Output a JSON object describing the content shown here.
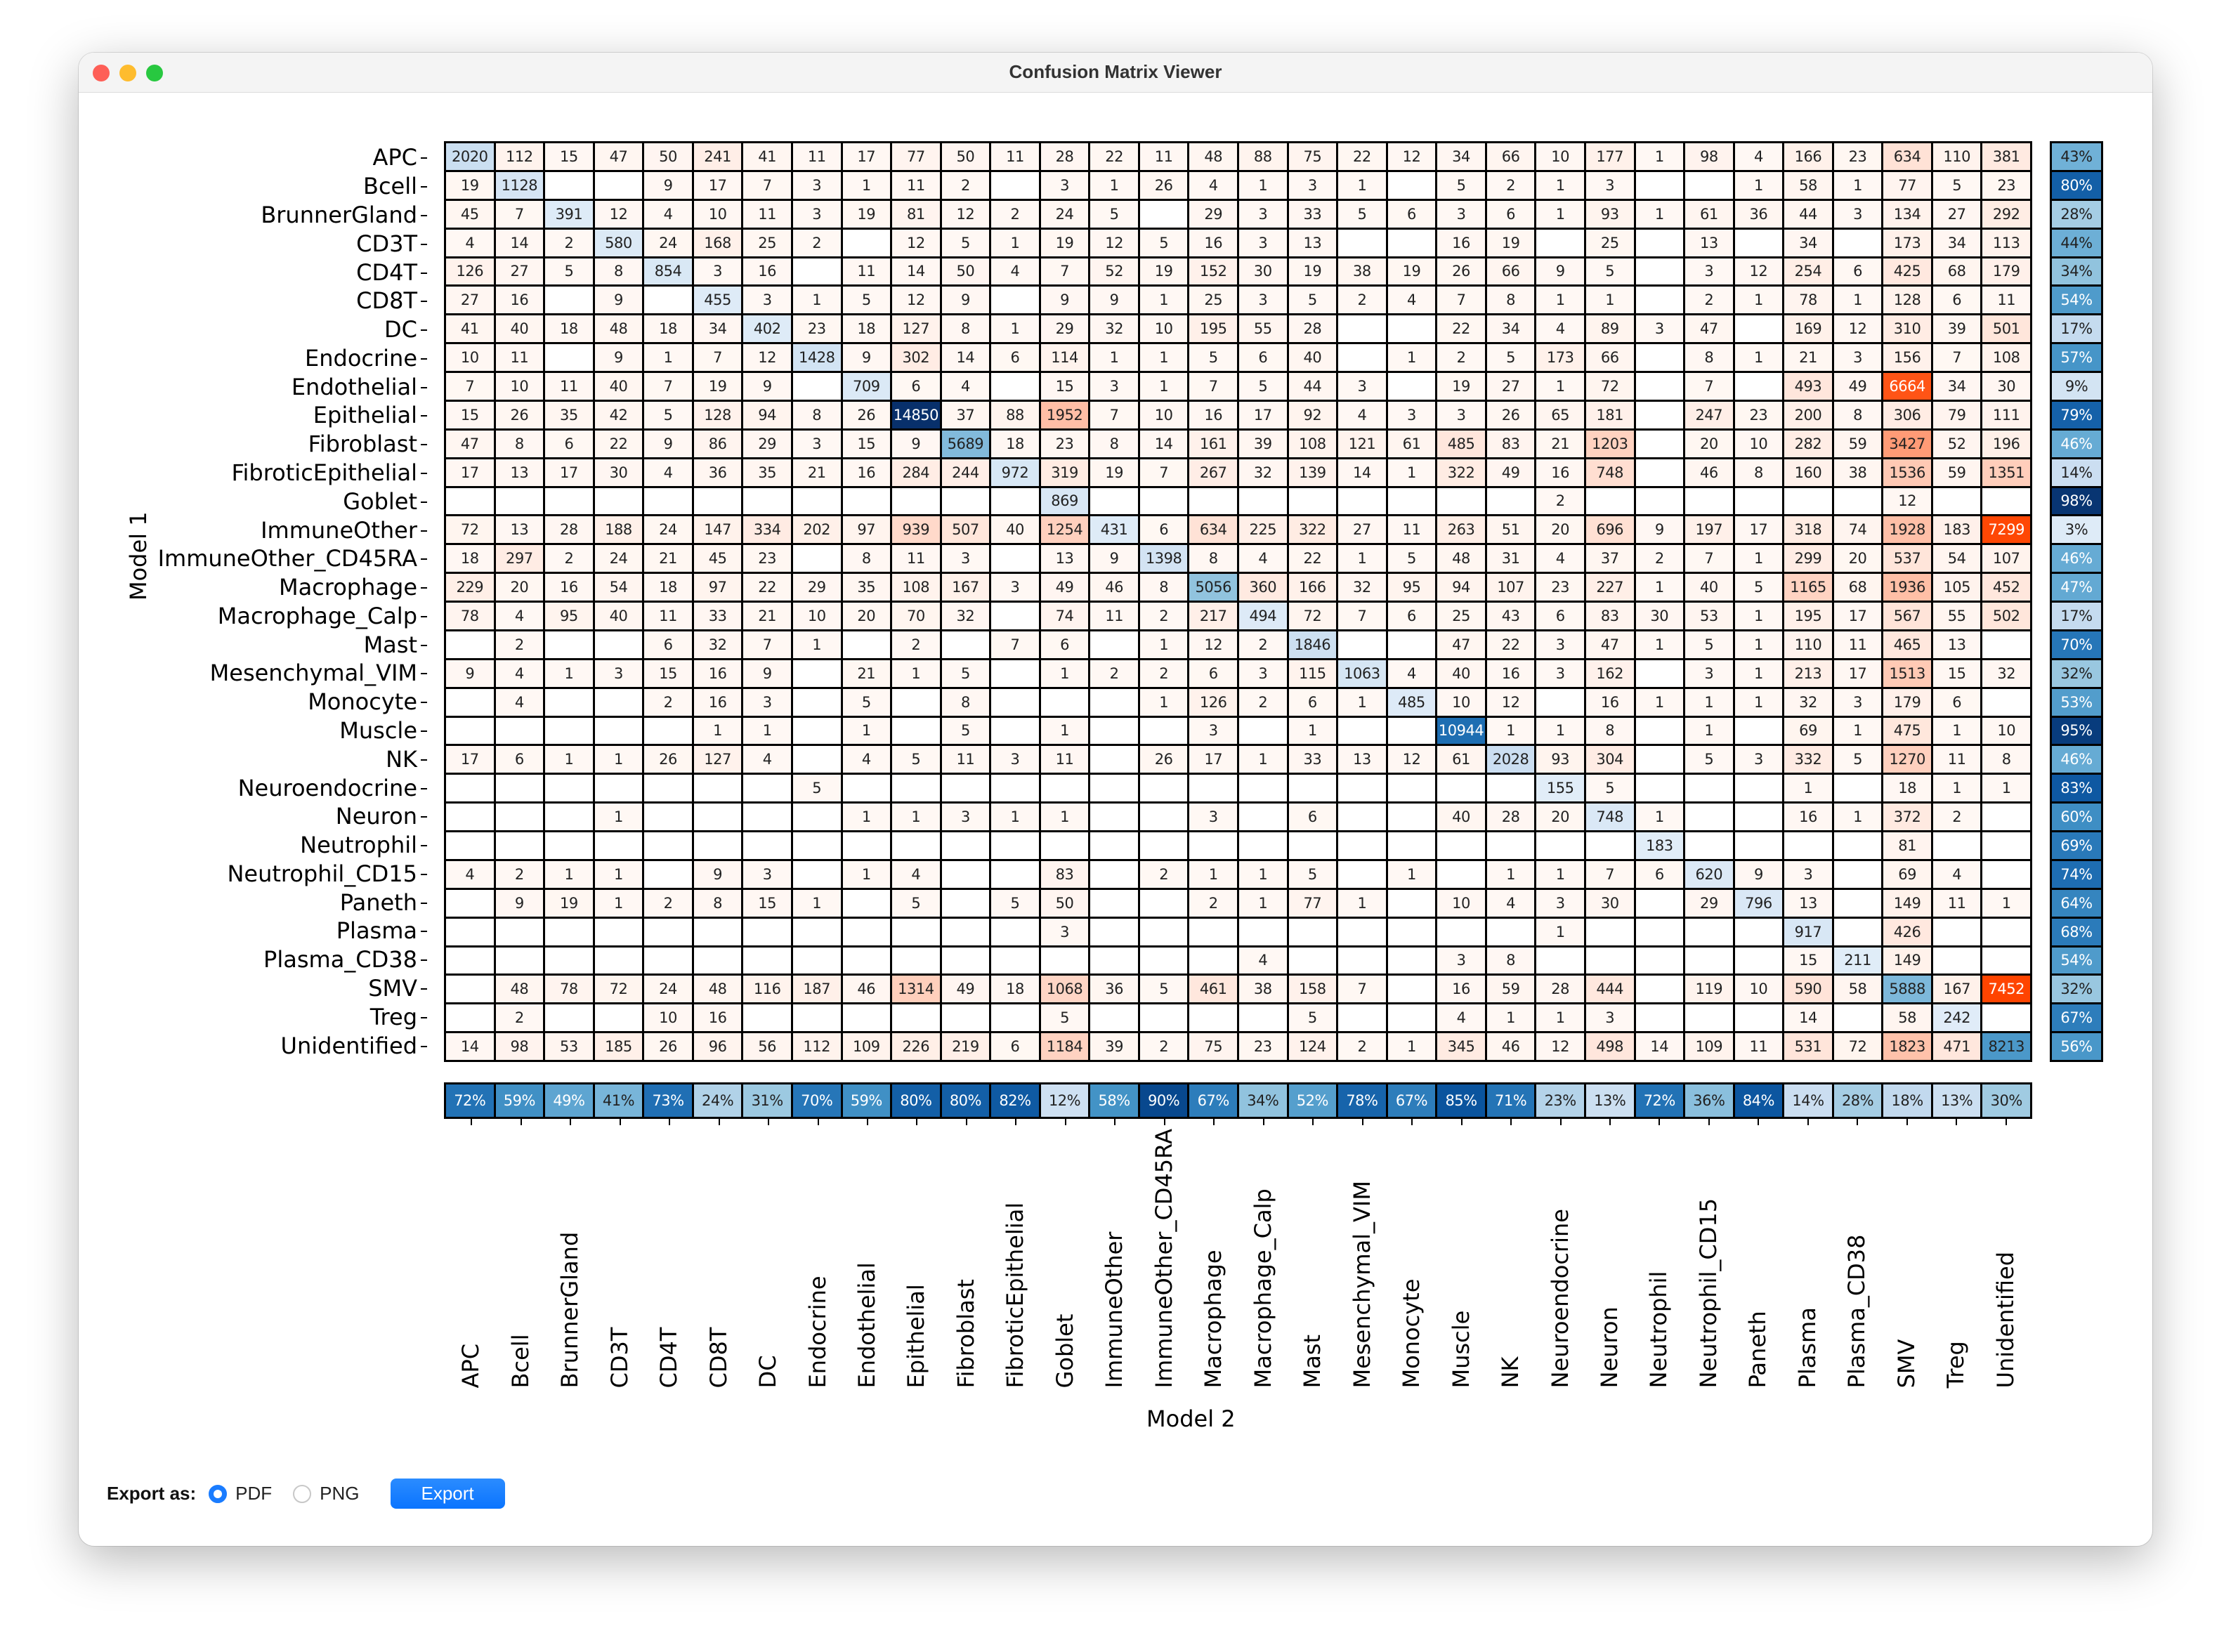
{
  "window": {
    "title": "Confusion Matrix Viewer"
  },
  "colors": {
    "close": "#fe5f57",
    "minimize": "#febc2e",
    "zoom": "#28c840",
    "accent": "#0a74ff",
    "diag_max": "#08306b",
    "offdiag_max": "#ff4400"
  },
  "axes": {
    "x_label": "Model 2",
    "y_label": "Model 1"
  },
  "labels": [
    "APC",
    "Bcell",
    "BrunnerGland",
    "CD3T",
    "CD4T",
    "CD8T",
    "DC",
    "Endocrine",
    "Endothelial",
    "Epithelial",
    "Fibroblast",
    "FibroticEpithelial",
    "Goblet",
    "ImmuneOther",
    "ImmuneOther_CD45RA",
    "Macrophage",
    "Macrophage_Calp",
    "Mast",
    "Mesenchymal_VIM",
    "Monocyte",
    "Muscle",
    "NK",
    "Neuroendocrine",
    "Neuron",
    "Neutrophil",
    "Neutrophil_CD15",
    "Paneth",
    "Plasma",
    "Plasma_CD38",
    "SMV",
    "Treg",
    "Unidentified"
  ],
  "matrix": [
    [
      2020,
      112,
      15,
      47,
      50,
      241,
      41,
      11,
      17,
      77,
      50,
      11,
      28,
      22,
      11,
      48,
      88,
      75,
      22,
      12,
      34,
      66,
      10,
      177,
      1,
      98,
      4,
      166,
      23,
      634,
      110,
      381
    ],
    [
      19,
      1128,
      null,
      null,
      9,
      17,
      7,
      3,
      1,
      11,
      2,
      null,
      3,
      1,
      26,
      4,
      1,
      3,
      1,
      null,
      5,
      2,
      1,
      3,
      null,
      null,
      1,
      58,
      1,
      77,
      5,
      23
    ],
    [
      45,
      7,
      391,
      12,
      4,
      10,
      11,
      3,
      19,
      81,
      12,
      2,
      24,
      5,
      null,
      29,
      3,
      33,
      5,
      6,
      3,
      6,
      1,
      93,
      1,
      61,
      36,
      44,
      3,
      134,
      27,
      292
    ],
    [
      4,
      14,
      2,
      580,
      24,
      168,
      25,
      2,
      null,
      12,
      5,
      1,
      19,
      12,
      5,
      16,
      3,
      13,
      null,
      null,
      16,
      19,
      null,
      25,
      null,
      13,
      null,
      34,
      null,
      173,
      34,
      113
    ],
    [
      126,
      27,
      5,
      8,
      854,
      3,
      16,
      null,
      11,
      14,
      50,
      4,
      7,
      52,
      19,
      152,
      30,
      19,
      38,
      19,
      26,
      66,
      9,
      5,
      null,
      3,
      12,
      254,
      6,
      425,
      68,
      179
    ],
    [
      27,
      16,
      null,
      9,
      null,
      455,
      3,
      1,
      5,
      12,
      9,
      null,
      9,
      9,
      1,
      25,
      3,
      5,
      2,
      4,
      7,
      8,
      1,
      1,
      null,
      2,
      1,
      78,
      1,
      128,
      6,
      11
    ],
    [
      41,
      40,
      18,
      48,
      18,
      34,
      402,
      23,
      18,
      127,
      8,
      1,
      29,
      32,
      10,
      195,
      55,
      28,
      null,
      null,
      22,
      34,
      4,
      89,
      3,
      47,
      null,
      169,
      12,
      310,
      39,
      501
    ],
    [
      10,
      11,
      null,
      9,
      1,
      7,
      12,
      1428,
      9,
      302,
      14,
      6,
      114,
      1,
      1,
      5,
      6,
      40,
      null,
      1,
      2,
      5,
      173,
      66,
      null,
      8,
      1,
      21,
      3,
      156,
      7,
      108
    ],
    [
      7,
      10,
      11,
      40,
      7,
      19,
      9,
      null,
      709,
      6,
      4,
      null,
      15,
      3,
      1,
      7,
      5,
      44,
      3,
      null,
      19,
      27,
      1,
      72,
      null,
      7,
      null,
      493,
      49,
      6664,
      34,
      30
    ],
    [
      15,
      26,
      35,
      42,
      5,
      128,
      94,
      8,
      26,
      14850,
      37,
      88,
      1952,
      7,
      10,
      16,
      17,
      92,
      4,
      3,
      3,
      26,
      65,
      181,
      null,
      247,
      23,
      200,
      8,
      306,
      79,
      111
    ],
    [
      47,
      8,
      6,
      22,
      9,
      86,
      29,
      3,
      15,
      9,
      5689,
      18,
      23,
      8,
      14,
      161,
      39,
      108,
      121,
      61,
      485,
      83,
      21,
      1203,
      null,
      20,
      10,
      282,
      59,
      3427,
      52,
      196
    ],
    [
      17,
      13,
      17,
      30,
      4,
      36,
      35,
      21,
      16,
      284,
      244,
      972,
      319,
      19,
      7,
      267,
      32,
      139,
      14,
      1,
      322,
      49,
      16,
      748,
      null,
      46,
      8,
      160,
      38,
      1536,
      59,
      1351
    ],
    [
      null,
      null,
      null,
      null,
      null,
      null,
      null,
      null,
      null,
      null,
      null,
      null,
      869,
      null,
      null,
      null,
      null,
      null,
      null,
      null,
      null,
      null,
      2,
      null,
      null,
      null,
      null,
      null,
      null,
      12,
      null,
      null
    ],
    [
      72,
      13,
      28,
      188,
      24,
      147,
      334,
      202,
      97,
      939,
      507,
      40,
      1254,
      431,
      6,
      634,
      225,
      322,
      27,
      11,
      263,
      51,
      20,
      696,
      9,
      197,
      17,
      318,
      74,
      1928,
      183,
      7299
    ],
    [
      18,
      297,
      2,
      24,
      21,
      45,
      23,
      null,
      8,
      11,
      3,
      null,
      13,
      9,
      1398,
      8,
      4,
      22,
      1,
      5,
      48,
      31,
      4,
      37,
      2,
      7,
      1,
      299,
      20,
      537,
      54,
      107
    ],
    [
      229,
      20,
      16,
      54,
      18,
      97,
      22,
      29,
      35,
      108,
      167,
      3,
      49,
      46,
      8,
      5056,
      360,
      166,
      32,
      95,
      94,
      107,
      23,
      227,
      1,
      40,
      5,
      1165,
      68,
      1936,
      105,
      452
    ],
    [
      78,
      4,
      95,
      40,
      11,
      33,
      21,
      10,
      20,
      70,
      32,
      null,
      74,
      11,
      2,
      217,
      494,
      72,
      7,
      6,
      25,
      43,
      6,
      83,
      30,
      53,
      1,
      195,
      17,
      567,
      55,
      502
    ],
    [
      null,
      2,
      null,
      null,
      6,
      32,
      7,
      1,
      null,
      2,
      null,
      7,
      6,
      null,
      1,
      12,
      2,
      1846,
      null,
      null,
      47,
      22,
      3,
      47,
      1,
      5,
      1,
      110,
      11,
      465,
      13,
      null
    ],
    [
      9,
      4,
      1,
      3,
      15,
      16,
      9,
      null,
      21,
      1,
      5,
      null,
      1,
      2,
      2,
      6,
      3,
      115,
      1063,
      4,
      40,
      16,
      3,
      162,
      null,
      3,
      1,
      213,
      17,
      1513,
      15,
      32
    ],
    [
      null,
      4,
      null,
      null,
      2,
      16,
      3,
      null,
      5,
      null,
      8,
      null,
      null,
      null,
      1,
      126,
      2,
      6,
      1,
      485,
      10,
      12,
      null,
      16,
      1,
      1,
      1,
      32,
      3,
      179,
      6,
      null
    ],
    [
      null,
      null,
      null,
      null,
      null,
      1,
      1,
      null,
      1,
      null,
      5,
      null,
      1,
      null,
      null,
      3,
      null,
      1,
      null,
      null,
      10944,
      1,
      1,
      8,
      null,
      1,
      null,
      69,
      1,
      475,
      1,
      10
    ],
    [
      17,
      6,
      1,
      1,
      26,
      127,
      4,
      null,
      4,
      5,
      11,
      3,
      11,
      null,
      26,
      17,
      1,
      33,
      13,
      12,
      61,
      2028,
      93,
      304,
      null,
      5,
      3,
      332,
      5,
      1270,
      11,
      8
    ],
    [
      null,
      null,
      null,
      null,
      null,
      null,
      null,
      5,
      null,
      null,
      null,
      null,
      null,
      null,
      null,
      null,
      null,
      null,
      null,
      null,
      null,
      null,
      155,
      5,
      null,
      null,
      null,
      1,
      null,
      18,
      1,
      1
    ],
    [
      null,
      null,
      null,
      1,
      null,
      null,
      null,
      null,
      1,
      1,
      3,
      1,
      1,
      null,
      null,
      3,
      null,
      6,
      null,
      null,
      40,
      28,
      20,
      748,
      1,
      null,
      null,
      16,
      1,
      372,
      2,
      null
    ],
    [
      null,
      null,
      null,
      null,
      null,
      null,
      null,
      null,
      null,
      null,
      null,
      null,
      null,
      null,
      null,
      null,
      null,
      null,
      null,
      null,
      null,
      null,
      null,
      null,
      183,
      null,
      null,
      null,
      null,
      81,
      null,
      null
    ],
    [
      4,
      2,
      1,
      1,
      null,
      9,
      3,
      null,
      1,
      4,
      null,
      null,
      83,
      null,
      2,
      1,
      1,
      5,
      null,
      1,
      null,
      1,
      1,
      7,
      6,
      620,
      9,
      3,
      null,
      69,
      4,
      null
    ],
    [
      null,
      9,
      19,
      1,
      2,
      8,
      15,
      1,
      null,
      5,
      null,
      5,
      50,
      null,
      null,
      2,
      1,
      77,
      1,
      null,
      10,
      4,
      3,
      30,
      null,
      29,
      796,
      13,
      null,
      149,
      11,
      1
    ],
    [
      null,
      null,
      null,
      null,
      null,
      null,
      null,
      null,
      null,
      null,
      null,
      null,
      3,
      null,
      null,
      null,
      null,
      null,
      null,
      null,
      null,
      null,
      1,
      null,
      null,
      null,
      null,
      917,
      null,
      426,
      null,
      null
    ],
    [
      null,
      null,
      null,
      null,
      null,
      null,
      null,
      null,
      null,
      null,
      null,
      null,
      null,
      null,
      null,
      null,
      4,
      null,
      null,
      null,
      3,
      8,
      null,
      null,
      null,
      null,
      null,
      15,
      211,
      149,
      null,
      null
    ],
    [
      null,
      48,
      78,
      72,
      24,
      48,
      116,
      187,
      46,
      1314,
      49,
      18,
      1068,
      36,
      5,
      461,
      38,
      158,
      7,
      null,
      16,
      59,
      28,
      444,
      null,
      119,
      10,
      590,
      58,
      5888,
      167,
      7452
    ],
    [
      null,
      2,
      null,
      null,
      10,
      16,
      null,
      null,
      null,
      null,
      null,
      null,
      5,
      null,
      null,
      null,
      null,
      5,
      null,
      null,
      4,
      1,
      1,
      3,
      null,
      null,
      null,
      14,
      null,
      58,
      242,
      null
    ],
    [
      14,
      98,
      53,
      185,
      26,
      96,
      56,
      112,
      109,
      226,
      219,
      6,
      1184,
      39,
      2,
      75,
      23,
      124,
      2,
      1,
      345,
      46,
      12,
      498,
      14,
      109,
      11,
      531,
      72,
      1823,
      471,
      8213
    ]
  ],
  "row_percent": [
    "43%",
    "80%",
    "28%",
    "44%",
    "34%",
    "54%",
    "17%",
    "57%",
    "9%",
    "79%",
    "46%",
    "14%",
    "98%",
    "3%",
    "46%",
    "47%",
    "17%",
    "70%",
    "32%",
    "53%",
    "95%",
    "46%",
    "83%",
    "60%",
    "69%",
    "74%",
    "64%",
    "68%",
    "54%",
    "32%",
    "67%",
    "56%"
  ],
  "col_percent": [
    "72%",
    "59%",
    "49%",
    "41%",
    "73%",
    "24%",
    "31%",
    "70%",
    "59%",
    "80%",
    "80%",
    "82%",
    "12%",
    "58%",
    "90%",
    "67%",
    "34%",
    "52%",
    "78%",
    "67%",
    "85%",
    "71%",
    "23%",
    "13%",
    "72%",
    "36%",
    "84%",
    "14%",
    "28%",
    "18%",
    "13%",
    "30%"
  ],
  "export": {
    "label": "Export as:",
    "options": [
      {
        "label": "PDF",
        "selected": true
      },
      {
        "label": "PNG",
        "selected": false
      }
    ],
    "button": "Export"
  }
}
